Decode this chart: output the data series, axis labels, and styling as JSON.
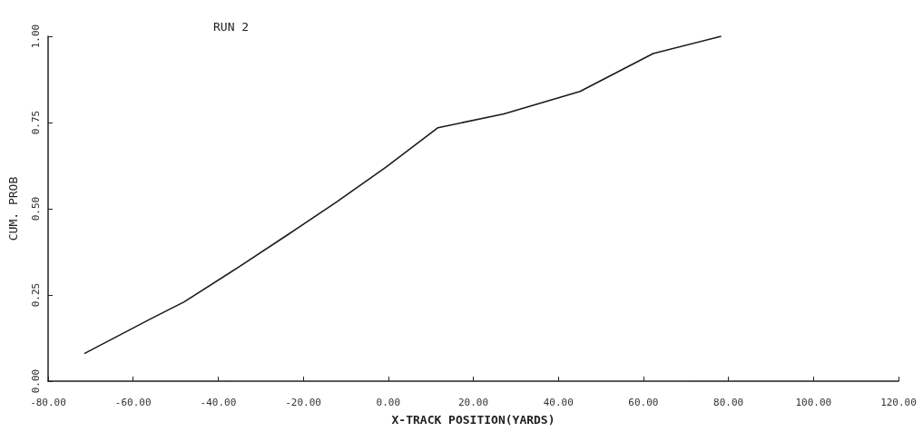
{
  "chart_data": {
    "type": "line",
    "title": "RUN 2",
    "xlabel": "X-TRACK POSITION(YARDS)",
    "ylabel": "CUM. PROB",
    "series": [
      {
        "color": "#1a1a1a",
        "x": [
          -71.5,
          -56,
          -48,
          -35.3,
          -23.6,
          -12.1,
          -0.6,
          11.7,
          27.2,
          45.1,
          62.3,
          78.3
        ],
        "values": [
          0.08,
          0.18,
          0.23,
          0.33,
          0.425,
          0.52,
          0.62,
          0.735,
          0.775,
          0.84,
          0.95,
          1.0
        ]
      }
    ],
    "xlim": [
      -80,
      120
    ],
    "xticks": [
      {
        "value": -80,
        "label": "-80.00"
      },
      {
        "value": -60,
        "label": "-60.00"
      },
      {
        "value": -40,
        "label": "-40.00"
      },
      {
        "value": -20,
        "label": "-20.00"
      },
      {
        "value": 0,
        "label": "0.00"
      },
      {
        "value": 20,
        "label": "20.00"
      },
      {
        "value": 40,
        "label": "40.00"
      },
      {
        "value": 60,
        "label": "60.00"
      },
      {
        "value": 80,
        "label": "80.00"
      },
      {
        "value": 100,
        "label": "100.00"
      },
      {
        "value": 120,
        "label": "120.00"
      }
    ],
    "ylim": [
      0,
      1
    ],
    "yticks": [
      {
        "value": 0,
        "label": "0.00"
      },
      {
        "value": 0.25,
        "label": "0.25"
      },
      {
        "value": 0.5,
        "label": "0.50"
      },
      {
        "value": 0.75,
        "label": "0.75"
      },
      {
        "value": 1,
        "label": "1.00"
      }
    ],
    "grid": false,
    "marker": "none",
    "line_style": "solid"
  }
}
